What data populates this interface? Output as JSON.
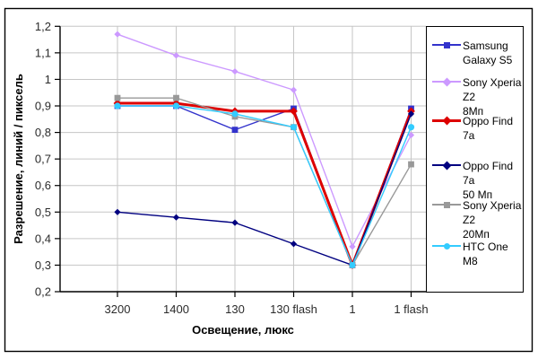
{
  "chart_data": {
    "type": "line",
    "title": "",
    "xlabel": "Освещение, люкс",
    "ylabel": "Разрешение, линий / пиксель",
    "categories": [
      "3200",
      "1400",
      "130",
      "130 flash",
      "1",
      "1 flash"
    ],
    "ylim": [
      0.2,
      1.2
    ],
    "ytick_step": 0.1,
    "ytick_labels": [
      "0,2",
      "0,3",
      "0,4",
      "0,5",
      "0,6",
      "0,7",
      "0,8",
      "0,9",
      "1",
      "1,1",
      "1,2"
    ],
    "grid": true,
    "legend_position": "right",
    "series": [
      {
        "name": "Samsung Galaxy S5",
        "legend_label": "Samsung\nGalaxy S5",
        "color": "#3333cc",
        "marker": "square",
        "line_width": 1.4,
        "values": [
          0.9,
          0.9,
          0.81,
          0.89,
          0.3,
          0.89
        ]
      },
      {
        "name": "Sony Xperia Z2 8Мп",
        "legend_label": "Sony Xperia Z2\n8Мп",
        "color": "#cc99ff",
        "marker": "diamond",
        "line_width": 1.4,
        "values": [
          1.17,
          1.09,
          1.03,
          0.96,
          0.37,
          0.79
        ]
      },
      {
        "name": "Oppo Find 7a",
        "legend_label": "Oppo Find 7a",
        "color": "#dd0000",
        "marker": "diamond",
        "line_width": 3,
        "values": [
          0.91,
          0.91,
          0.88,
          0.88,
          0.3,
          0.88
        ]
      },
      {
        "name": "Oppo Find 7a 50 Мп",
        "legend_label": "Oppo Find 7a\n50 Мп",
        "color": "#000080",
        "marker": "diamond",
        "line_width": 1.4,
        "values": [
          0.5,
          0.48,
          0.46,
          0.38,
          0.3,
          0.87
        ]
      },
      {
        "name": "Sony Xperia Z2 20Мп",
        "legend_label": "Sony Xperia Z2\n20Мп",
        "color": "#999999",
        "marker": "square",
        "line_width": 1.4,
        "values": [
          0.93,
          0.93,
          0.86,
          0.82,
          0.3,
          0.68
        ]
      },
      {
        "name": "HTC One M8",
        "legend_label": "HTC One M8",
        "color": "#33ccff",
        "marker": "circle",
        "line_width": 1.4,
        "values": [
          0.9,
          0.9,
          0.87,
          0.82,
          0.3,
          0.82
        ]
      }
    ],
    "colors": {
      "gridline": "#c6c6c6",
      "axis": "#000000",
      "frame": "#000000",
      "tick_text": "#2b2b2b"
    }
  }
}
